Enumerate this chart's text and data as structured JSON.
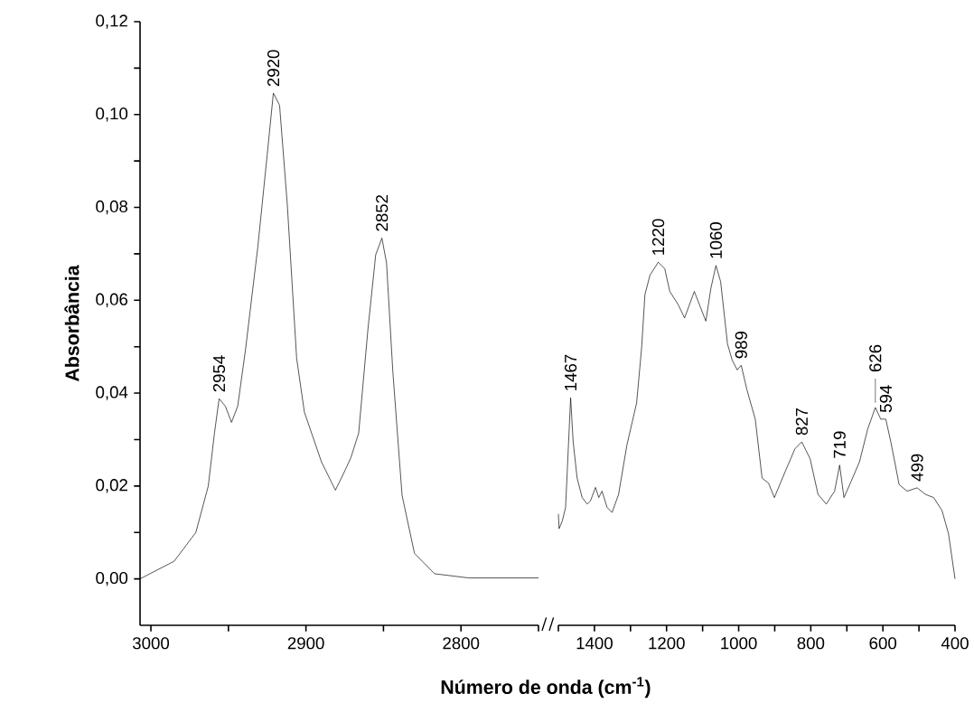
{
  "chart_data": [
    {
      "type": "line",
      "xlabel": "Número de onda (cm$^{-1}$)",
      "ylabel": "Absorbância",
      "x": [
        3007,
        2985,
        2971,
        2963,
        2959,
        2956,
        2952,
        2948,
        2944,
        2939,
        2931,
        2925,
        2921,
        2917,
        2912,
        2906,
        2901,
        2890,
        2881,
        2876,
        2871,
        2866,
        2860,
        2855,
        2851,
        2848,
        2844,
        2838,
        2830,
        2817,
        2795,
        2750
      ],
      "series": [
        {
          "color": "#000000",
          "values": [
            0.0,
            0.0038,
            0.01,
            0.02,
            0.0314,
            0.0388,
            0.0372,
            0.0337,
            0.0372,
            0.0493,
            0.0716,
            0.0913,
            0.1046,
            0.102,
            0.0805,
            0.0475,
            0.0359,
            0.0252,
            0.0191,
            0.0225,
            0.0261,
            0.0314,
            0.0538,
            0.0698,
            0.0734,
            0.068,
            0.0448,
            0.018,
            0.0055,
            0.0011,
            0.0002,
            0.0002
          ]
        }
      ],
      "xlim": [
        3007,
        2750
      ],
      "ylim": [
        -0.01,
        0.12
      ],
      "xticks": [
        3000,
        {
          "value": 2950,
          "label": null
        },
        2900,
        {
          "value": 2850,
          "label": null
        },
        2800,
        {
          "value": 2750,
          "label": null
        }
      ],
      "yticks": [
        {
          "value": 0,
          "label": "0,00"
        },
        {
          "value": 0.01,
          "label": null
        },
        {
          "value": 0.02,
          "label": "0,02"
        },
        {
          "value": 0.03,
          "label": null
        },
        {
          "value": 0.04,
          "label": "0,04"
        },
        {
          "value": 0.05,
          "label": null
        },
        {
          "value": 0.06,
          "label": "0,06"
        },
        {
          "value": 0.07,
          "label": null
        },
        {
          "value": 0.08,
          "label": "0,08"
        },
        {
          "value": 0.09,
          "label": null
        },
        {
          "value": 0.1,
          "label": "0,10"
        },
        {
          "value": 0.11,
          "label": null
        },
        {
          "value": 0.12,
          "label": "0,12"
        }
      ],
      "annotations": [
        {
          "text": "2954",
          "x": 2956,
          "y": 0.0388
        },
        {
          "text": "2920",
          "x": 2921,
          "y": 0.1046
        },
        {
          "text": "2852",
          "x": 2851,
          "y": 0.0734
        }
      ]
    },
    {
      "type": "line",
      "tick_labels": "x",
      "x": [
        1500,
        1498,
        1489,
        1480,
        1470,
        1466,
        1459,
        1448,
        1434,
        1420,
        1411,
        1397,
        1388,
        1379,
        1365,
        1351,
        1333,
        1310,
        1283,
        1269,
        1260,
        1246,
        1223,
        1205,
        1191,
        1168,
        1150,
        1123,
        1109,
        1091,
        1077,
        1063,
        1050,
        1031,
        1018,
        1004,
        993,
        977,
        954,
        935,
        917,
        901,
        871,
        844,
        825,
        802,
        780,
        757,
        734,
        720,
        708,
        688,
        665,
        642,
        621,
        606,
        592,
        578,
        555,
        533,
        505,
        482,
        459,
        436,
        418,
        400
      ],
      "series": [
        {
          "color": "#000000",
          "values": [
            0.014,
            0.0108,
            0.0125,
            0.0154,
            0.0323,
            0.039,
            0.0295,
            0.0217,
            0.0175,
            0.0161,
            0.0168,
            0.0197,
            0.0175,
            0.0189,
            0.0154,
            0.0143,
            0.0182,
            0.0288,
            0.0379,
            0.0499,
            0.0612,
            0.0654,
            0.0682,
            0.0668,
            0.0619,
            0.0591,
            0.0562,
            0.0619,
            0.0591,
            0.0555,
            0.0626,
            0.0675,
            0.064,
            0.0506,
            0.0471,
            0.045,
            0.046,
            0.0407,
            0.0344,
            0.0217,
            0.0206,
            0.0175,
            0.0231,
            0.028,
            0.0295,
            0.0259,
            0.0182,
            0.0161,
            0.0189,
            0.0245,
            0.0175,
            0.021,
            0.0252,
            0.0323,
            0.0369,
            0.0344,
            0.0344,
            0.0295,
            0.0203,
            0.0189,
            0.0196,
            0.0182,
            0.0175,
            0.0147,
            0.0097,
            0.0
          ]
        }
      ],
      "xlim": [
        1500,
        400
      ],
      "ylim": [
        -0.01,
        0.12
      ],
      "xticks": [
        {
          "value": 1500,
          "label": null
        },
        1400,
        {
          "value": 1300,
          "label": null
        },
        1200,
        {
          "value": 1100,
          "label": null
        },
        1000,
        {
          "value": 900,
          "label": null
        },
        800,
        {
          "value": 700,
          "label": null
        },
        600,
        {
          "value": 500,
          "label": null
        },
        400
      ],
      "annotations": [
        {
          "text": "1467",
          "x": 1466,
          "y": 0.039
        },
        {
          "text": "1220",
          "x": 1223,
          "y": 0.0682
        },
        {
          "text": "1060",
          "x": 1063,
          "y": 0.0675
        },
        {
          "text": "989",
          "x": 993,
          "y": 0.046
        },
        {
          "text": "827",
          "x": 825,
          "y": 0.0295
        },
        {
          "text": "719",
          "x": 720,
          "y": 0.0245
        },
        {
          "text": "626",
          "x": 621,
          "y": 0.0369
        },
        {
          "text": "594",
          "x": 592,
          "y": 0.0344
        },
        {
          "text": "499",
          "x": 505,
          "y": 0.0196
        }
      ]
    }
  ]
}
